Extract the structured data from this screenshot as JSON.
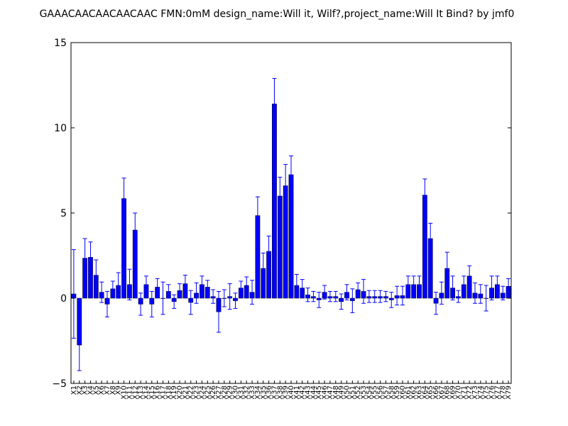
{
  "chart_data": {
    "type": "bar",
    "title": "GAAACAACAACAACAAC  FMN:0mM  design_name:Will it, Wilf?,project_name:Will It Bind? by jmf0",
    "xlabel": "",
    "ylabel": "",
    "ylim": [
      -5,
      15
    ],
    "yticks": [
      -5,
      0,
      5,
      10,
      15
    ],
    "bar_color": "#0000ff",
    "error_color": "#0000ff",
    "categories": [
      "X1",
      "X2",
      "X3",
      "X4",
      "X5",
      "X6",
      "X7",
      "X8",
      "X9",
      "X10",
      "X11",
      "X12",
      "X13",
      "X14",
      "X15",
      "X16",
      "X17",
      "X18",
      "X19",
      "X20",
      "X21",
      "X22",
      "X23",
      "X24",
      "X25",
      "X26",
      "X27",
      "X28",
      "X29",
      "X30",
      "X31",
      "X32",
      "X33",
      "X34",
      "X35",
      "X36",
      "X37",
      "X38",
      "X39",
      "X40",
      "X41",
      "X42",
      "X43",
      "X44",
      "X45",
      "X46",
      "X47",
      "X48",
      "X49",
      "X50",
      "X51",
      "X52",
      "X53",
      "X54",
      "X55",
      "X56",
      "X57",
      "X58",
      "X59",
      "X60",
      "X61",
      "X62",
      "X63",
      "X64",
      "X65",
      "X66",
      "X67",
      "X68",
      "X69",
      "X70",
      "X71",
      "X72",
      "X73",
      "X74",
      "X75",
      "X76",
      "X77",
      "X78",
      "X79"
    ],
    "values": [
      0.25,
      -2.75,
      2.35,
      2.4,
      1.35,
      0.35,
      -0.35,
      0.55,
      0.75,
      5.85,
      0.8,
      4.0,
      -0.35,
      0.8,
      -0.35,
      0.65,
      0.0,
      0.4,
      -0.2,
      0.45,
      0.85,
      -0.25,
      0.3,
      0.8,
      0.65,
      0.1,
      -0.8,
      0.0,
      0.1,
      -0.15,
      0.6,
      0.75,
      0.35,
      4.85,
      1.75,
      2.75,
      11.4,
      6.0,
      6.6,
      7.25,
      0.75,
      0.6,
      0.2,
      0.1,
      -0.1,
      0.35,
      0.1,
      0.1,
      -0.2,
      0.35,
      -0.15,
      0.5,
      0.4,
      0.1,
      0.1,
      0.1,
      0.1,
      -0.1,
      0.15,
      0.15,
      0.8,
      0.8,
      0.8,
      6.05,
      3.5,
      -0.3,
      0.3,
      1.75,
      0.6,
      0.1,
      0.8,
      1.3,
      0.3,
      0.25,
      0.0,
      0.6,
      0.8,
      0.3,
      0.7
    ],
    "errors": [
      2.6,
      1.5,
      1.15,
      0.9,
      0.9,
      0.6,
      0.75,
      0.45,
      0.75,
      1.2,
      0.9,
      1.0,
      0.65,
      0.5,
      0.75,
      0.5,
      0.95,
      0.4,
      0.4,
      0.4,
      0.5,
      0.7,
      0.6,
      0.5,
      0.4,
      0.4,
      1.2,
      0.5,
      0.75,
      0.45,
      0.4,
      0.5,
      0.7,
      1.1,
      0.9,
      0.9,
      1.5,
      1.1,
      1.25,
      1.1,
      0.65,
      0.5,
      0.4,
      0.3,
      0.45,
      0.4,
      0.3,
      0.3,
      0.45,
      0.45,
      0.7,
      0.4,
      0.7,
      0.35,
      0.35,
      0.35,
      0.3,
      0.45,
      0.55,
      0.55,
      0.5,
      0.5,
      0.5,
      0.95,
      0.9,
      0.65,
      0.65,
      0.95,
      0.7,
      0.35,
      0.5,
      0.6,
      0.6,
      0.55,
      0.75,
      0.7,
      0.5,
      0.4,
      0.45
    ]
  }
}
